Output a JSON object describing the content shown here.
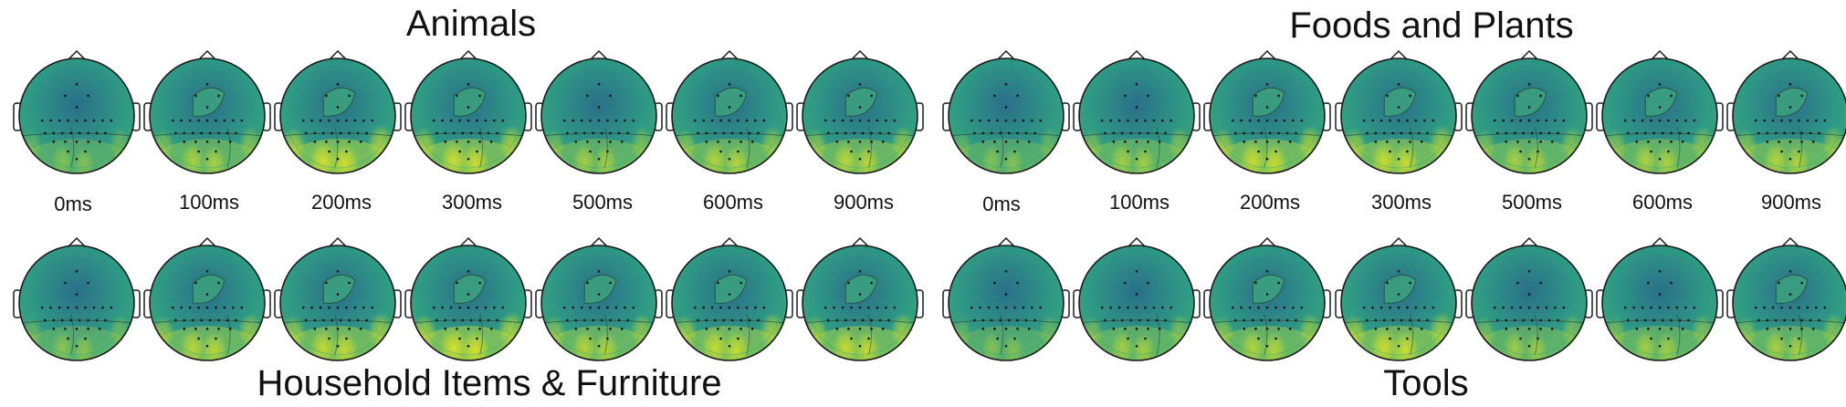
{
  "panels": [
    {
      "title": "Animals"
    },
    {
      "title": "Foods and Plants"
    },
    {
      "title": "Household Items & Furniture"
    },
    {
      "title": "Tools"
    }
  ],
  "time_labels": [
    "0ms",
    "100ms",
    "200ms",
    "300ms",
    "500ms",
    "600ms",
    "900ms"
  ],
  "colormap": {
    "low": "#2a6f8a",
    "mid": "#2f9a84",
    "high": "#e8e51f",
    "rim": "#25a386",
    "outline": "#1a1a1a"
  },
  "topomaps": {
    "animals": [
      0.05,
      0.35,
      0.75,
      0.7,
      0.3,
      0.45,
      0.5
    ],
    "foods": [
      0.05,
      0.3,
      0.65,
      0.65,
      0.35,
      0.4,
      0.45
    ],
    "household": [
      0.1,
      0.5,
      0.6,
      0.8,
      0.45,
      0.65,
      0.6
    ],
    "tools": [
      0.05,
      0.3,
      0.45,
      0.7,
      0.25,
      0.3,
      0.35
    ]
  }
}
